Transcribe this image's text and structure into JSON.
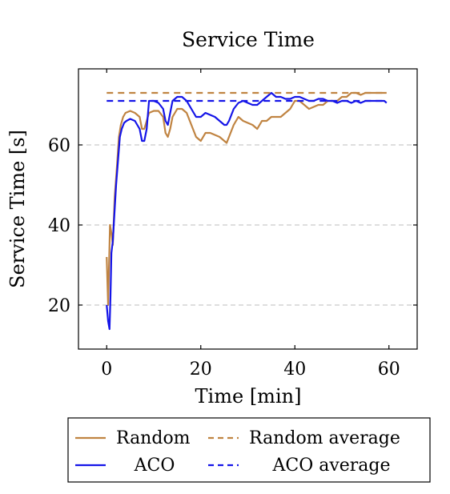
{
  "chart_data": {
    "type": "line",
    "title": "Service Time",
    "xlabel": "Time [min]",
    "ylabel": "Service Time [s]",
    "xlim": [
      -6,
      66
    ],
    "ylim": [
      9,
      79
    ],
    "x_ticks": [
      0,
      20,
      40,
      60
    ],
    "y_ticks": [
      20,
      40,
      60
    ],
    "grid": "horizontal dashed at y ticks",
    "legend_position": "below plot",
    "series": [
      {
        "name": "Random",
        "color": "#c08442",
        "style": "solid",
        "points": [
          [
            0,
            32
          ],
          [
            0.3,
            20
          ],
          [
            0.5,
            30
          ],
          [
            0.7,
            40
          ],
          [
            1.0,
            38
          ],
          [
            1.3,
            35
          ],
          [
            1.7,
            47
          ],
          [
            2.2,
            55
          ],
          [
            2.6,
            62
          ],
          [
            3.0,
            65
          ],
          [
            3.5,
            67
          ],
          [
            4.0,
            68
          ],
          [
            5.0,
            68.5
          ],
          [
            6.0,
            68
          ],
          [
            7.0,
            67
          ],
          [
            7.5,
            64
          ],
          [
            8.0,
            64
          ],
          [
            8.5,
            66
          ],
          [
            9.0,
            68
          ],
          [
            10.0,
            68.5
          ],
          [
            11.0,
            68.5
          ],
          [
            12.0,
            67
          ],
          [
            12.5,
            63
          ],
          [
            13.0,
            62
          ],
          [
            13.5,
            64
          ],
          [
            14.0,
            67
          ],
          [
            15.0,
            69
          ],
          [
            16.0,
            69
          ],
          [
            17.0,
            68
          ],
          [
            18.0,
            65
          ],
          [
            19.0,
            62
          ],
          [
            20.0,
            61
          ],
          [
            21.0,
            63
          ],
          [
            22.0,
            63
          ],
          [
            23.0,
            62.5
          ],
          [
            24.0,
            62
          ],
          [
            25.0,
            61
          ],
          [
            25.5,
            60.5
          ],
          [
            26.0,
            62
          ],
          [
            27.0,
            65
          ],
          [
            28.0,
            67
          ],
          [
            29.0,
            66
          ],
          [
            30.0,
            65.5
          ],
          [
            31.0,
            65
          ],
          [
            32.0,
            64
          ],
          [
            33.0,
            66
          ],
          [
            34.0,
            66
          ],
          [
            35.0,
            67
          ],
          [
            36.0,
            67
          ],
          [
            37.0,
            67
          ],
          [
            38.0,
            68
          ],
          [
            39.0,
            69
          ],
          [
            40.0,
            71
          ],
          [
            41.0,
            71
          ],
          [
            42.0,
            70
          ],
          [
            43.0,
            69
          ],
          [
            44.0,
            69.5
          ],
          [
            45.0,
            70
          ],
          [
            46.0,
            70
          ],
          [
            47.0,
            71
          ],
          [
            48.0,
            71
          ],
          [
            49.0,
            71
          ],
          [
            50.0,
            72
          ],
          [
            51.0,
            72
          ],
          [
            52.0,
            73
          ],
          [
            53.0,
            73
          ],
          [
            54.0,
            72.5
          ],
          [
            55.0,
            73
          ],
          [
            56.0,
            73
          ],
          [
            57.0,
            73
          ],
          [
            58.0,
            73
          ],
          [
            59.0,
            73
          ],
          [
            59.5,
            73
          ]
        ]
      },
      {
        "name": "Random average",
        "color": "#c08442",
        "style": "dashed",
        "points": [
          [
            0,
            73
          ],
          [
            59.5,
            73
          ]
        ]
      },
      {
        "name": "ACO",
        "color": "#1515e8",
        "style": "solid",
        "points": [
          [
            0,
            20
          ],
          [
            0.3,
            16
          ],
          [
            0.6,
            14
          ],
          [
            0.8,
            22
          ],
          [
            1.0,
            33
          ],
          [
            1.3,
            36
          ],
          [
            1.6,
            42
          ],
          [
            2.0,
            50
          ],
          [
            2.4,
            56
          ],
          [
            2.8,
            62
          ],
          [
            3.2,
            64
          ],
          [
            3.7,
            65.5
          ],
          [
            4.2,
            66
          ],
          [
            5.0,
            66.5
          ],
          [
            6.0,
            66
          ],
          [
            7.0,
            64
          ],
          [
            7.5,
            61
          ],
          [
            8.0,
            61
          ],
          [
            8.5,
            64
          ],
          [
            9.0,
            71
          ],
          [
            10.0,
            71
          ],
          [
            11.0,
            70.5
          ],
          [
            12.0,
            69
          ],
          [
            12.5,
            66
          ],
          [
            13.0,
            65
          ],
          [
            13.5,
            68
          ],
          [
            14.0,
            71
          ],
          [
            15.0,
            72
          ],
          [
            16.0,
            72
          ],
          [
            17.0,
            71
          ],
          [
            18.0,
            69
          ],
          [
            19.0,
            67
          ],
          [
            20.0,
            67
          ],
          [
            21.0,
            68
          ],
          [
            22.0,
            67.5
          ],
          [
            23.0,
            67
          ],
          [
            24.0,
            66
          ],
          [
            25.0,
            65
          ],
          [
            25.5,
            65
          ],
          [
            26.0,
            66
          ],
          [
            27.0,
            69
          ],
          [
            28.0,
            70.5
          ],
          [
            29.0,
            71
          ],
          [
            30.0,
            70.5
          ],
          [
            31.0,
            70
          ],
          [
            32.0,
            70
          ],
          [
            33.0,
            71
          ],
          [
            34.0,
            72
          ],
          [
            35.0,
            73
          ],
          [
            36.0,
            72
          ],
          [
            37.0,
            72
          ],
          [
            38.0,
            71.5
          ],
          [
            39.0,
            71.5
          ],
          [
            40.0,
            72
          ],
          [
            41.0,
            72
          ],
          [
            42.0,
            71.5
          ],
          [
            43.0,
            71
          ],
          [
            44.0,
            71
          ],
          [
            45.0,
            71.5
          ],
          [
            46.0,
            71.5
          ],
          [
            47.0,
            71
          ],
          [
            48.0,
            71
          ],
          [
            49.0,
            70.5
          ],
          [
            50.0,
            71
          ],
          [
            51.0,
            71
          ],
          [
            52.0,
            70.5
          ],
          [
            53.0,
            71
          ],
          [
            54.0,
            70.5
          ],
          [
            55.0,
            71
          ],
          [
            56.0,
            71
          ],
          [
            57.0,
            71
          ],
          [
            58.0,
            71
          ],
          [
            59.0,
            71
          ],
          [
            59.5,
            70.5
          ]
        ]
      },
      {
        "name": "ACO average",
        "color": "#1515e8",
        "style": "dashed",
        "points": [
          [
            0,
            71
          ],
          [
            59.5,
            71
          ]
        ]
      }
    ]
  }
}
